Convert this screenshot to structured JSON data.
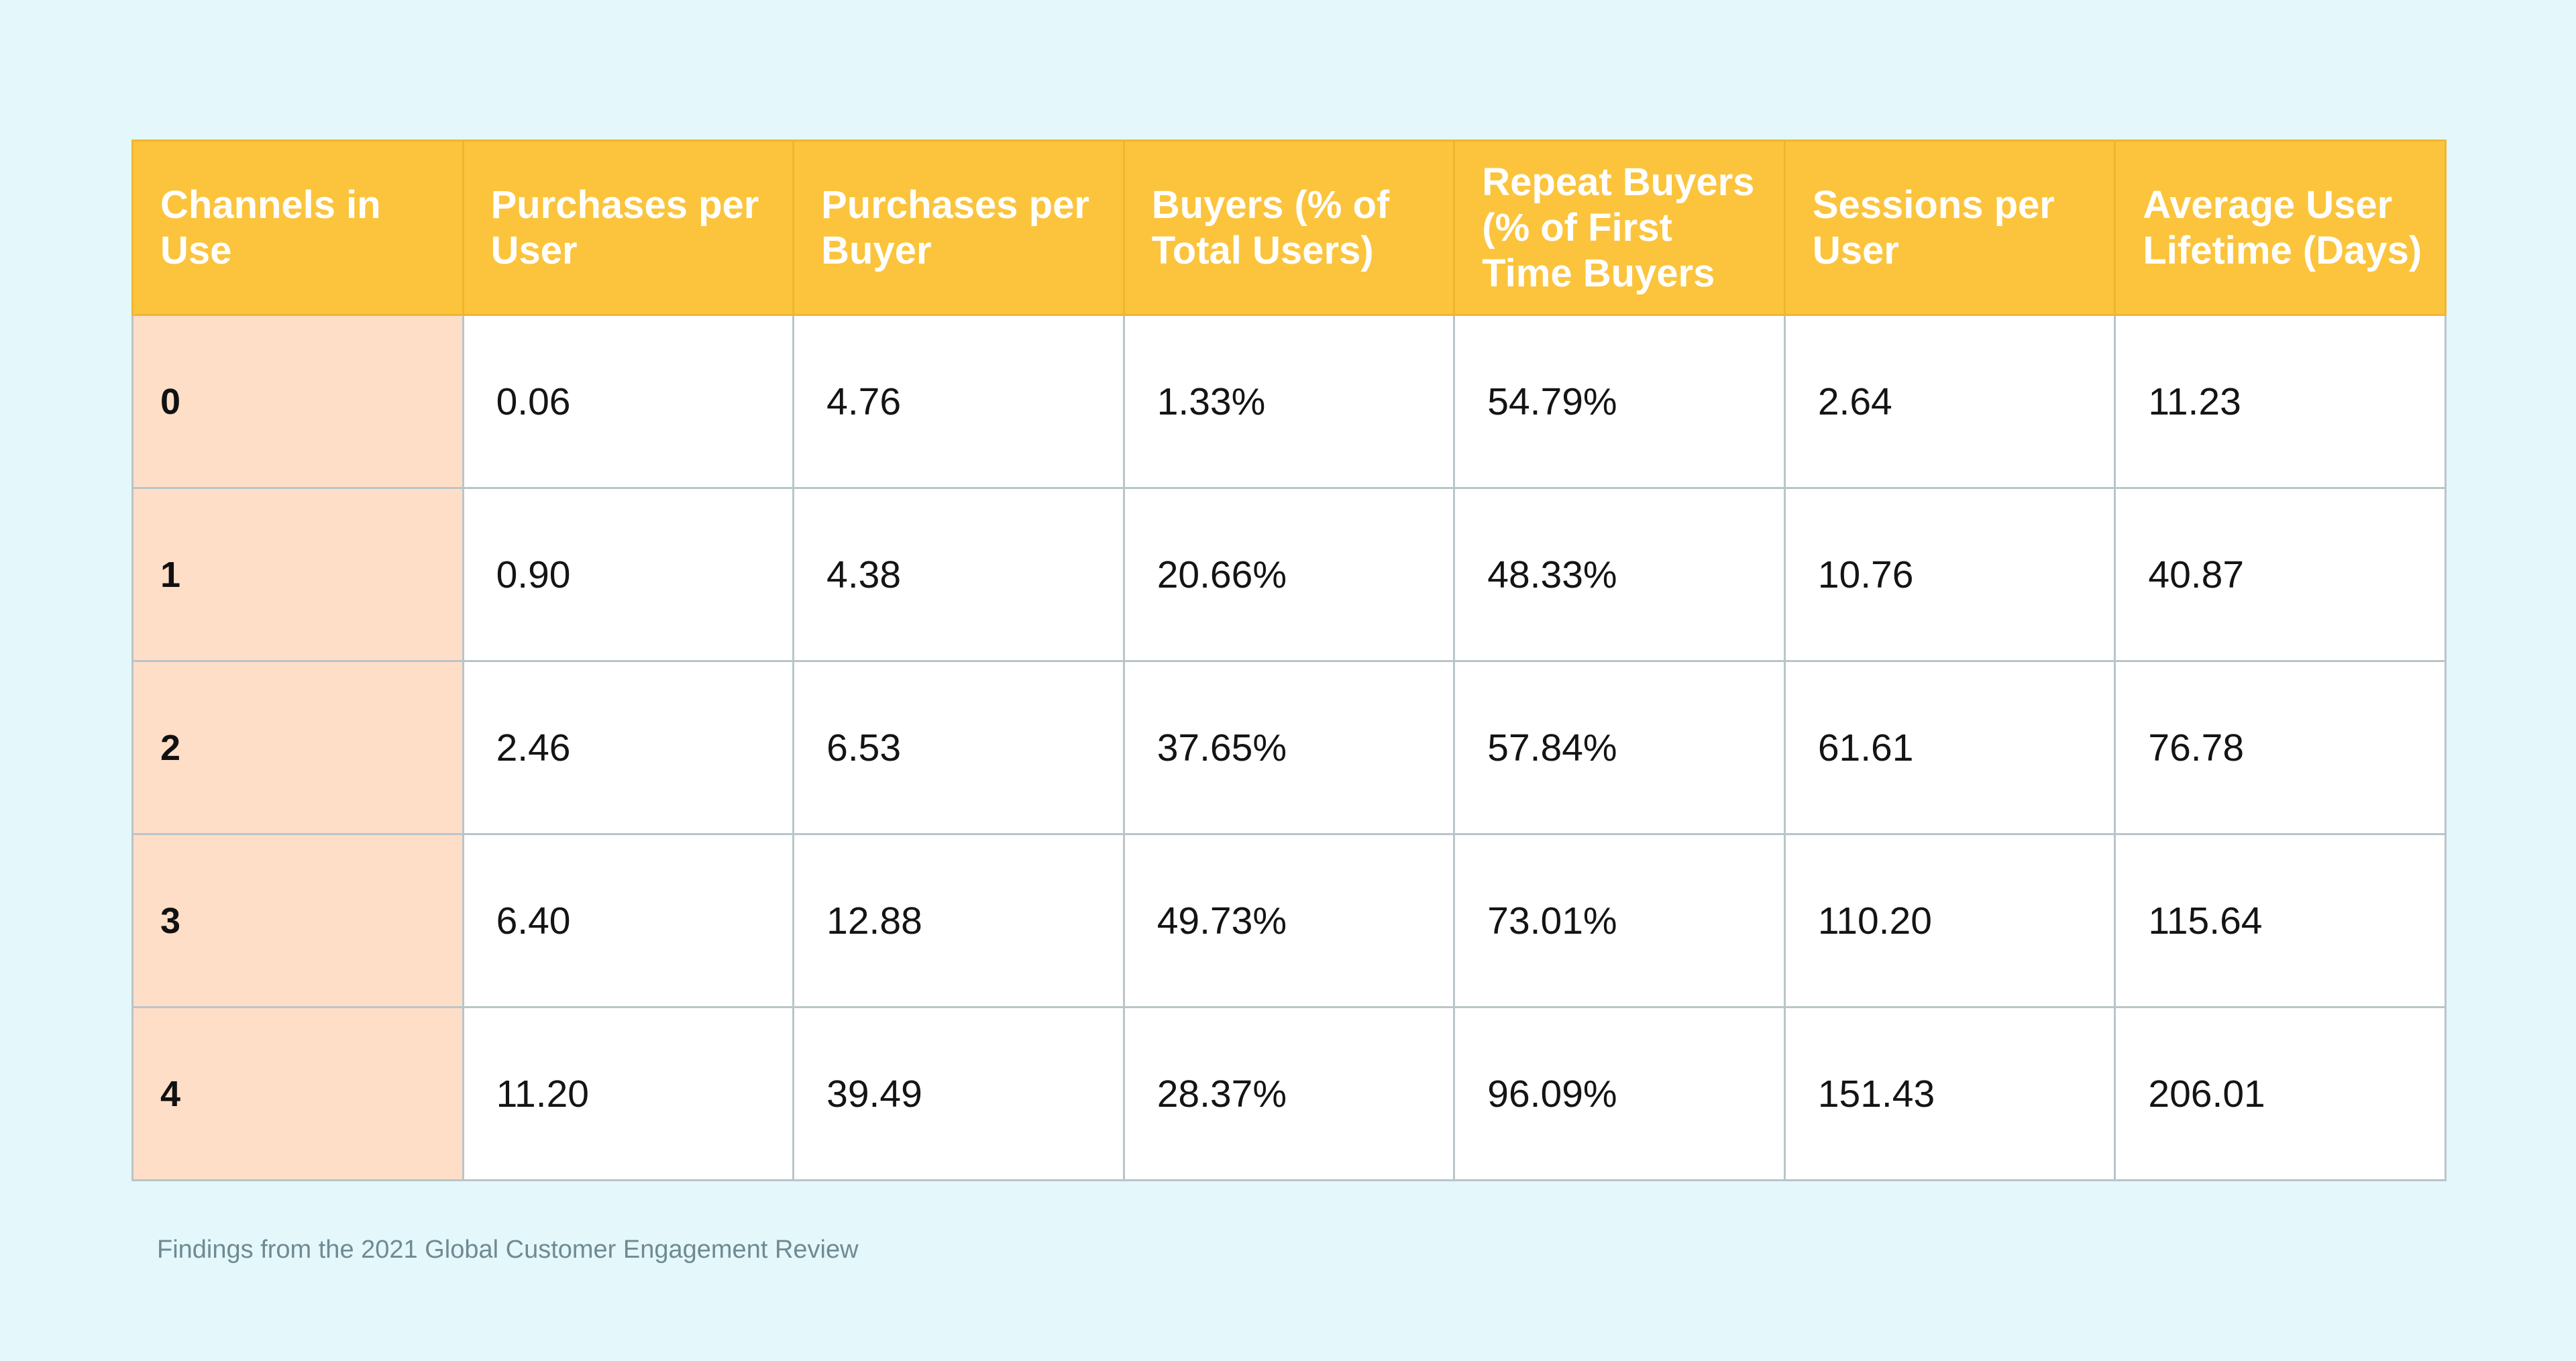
{
  "chart_data": {
    "type": "table",
    "columns": [
      "Channels in Use",
      "Purchases per User",
      "Purchases per Buyer",
      "Buyers (% of Total Users)",
      "Repeat Buyers (% of First Time Buyers",
      "Sessions per User",
      "Average User Lifetime (Days)"
    ],
    "rows": [
      [
        "0",
        "0.06",
        "4.76",
        "1.33%",
        "54.79%",
        "2.64",
        "11.23"
      ],
      [
        "1",
        "0.90",
        "4.38",
        "20.66%",
        "48.33%",
        "10.76",
        "40.87"
      ],
      [
        "2",
        "2.46",
        "6.53",
        "37.65%",
        "57.84%",
        "61.61",
        "76.78"
      ],
      [
        "3",
        "6.40",
        "12.88",
        "49.73%",
        "73.01%",
        "110.20",
        "115.64"
      ],
      [
        "4",
        "11.20",
        "39.49",
        "28.37%",
        "96.09%",
        "151.43",
        "206.01"
      ]
    ],
    "caption": "Findings from the 2021 Global Customer Engagement Review"
  },
  "colors": {
    "background": "#e4f7fb",
    "header": "#fbc43c",
    "header_text": "#ffffff",
    "row_label_cell": "#ffdec8",
    "cell": "#ffffff",
    "border": "#b9c5c9",
    "caption_text": "#6f8a92"
  }
}
